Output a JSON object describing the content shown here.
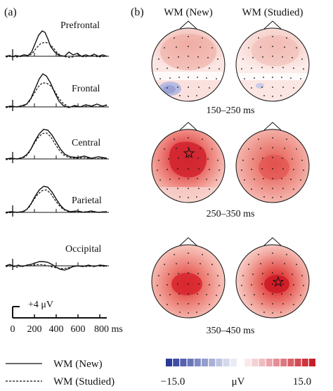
{
  "figure": {
    "panel_a_label": "(a)",
    "panel_b_label": "(b)",
    "regions": [
      "Prefrontal",
      "Frontal",
      "Central",
      "Parietal",
      "Occipital"
    ],
    "scale_bar": {
      "amplitude_label": "+4 μV",
      "time_ticks": [
        "0",
        "200",
        "400",
        "600",
        "800 ms"
      ]
    },
    "topo_columns": [
      "WM (New)",
      "WM (Studied)"
    ],
    "time_windows": [
      "150–250 ms",
      "250–350 ms",
      "350–450 ms"
    ],
    "legend": {
      "solid": "WM (New)",
      "dashed": "WM (Studied)"
    },
    "colorbar": {
      "min_label": "−15.0",
      "unit_label": "μV",
      "max_label": "15.0",
      "negative_color": "#2a3a9a",
      "positive_color": "#c81e2a"
    }
  }
}
